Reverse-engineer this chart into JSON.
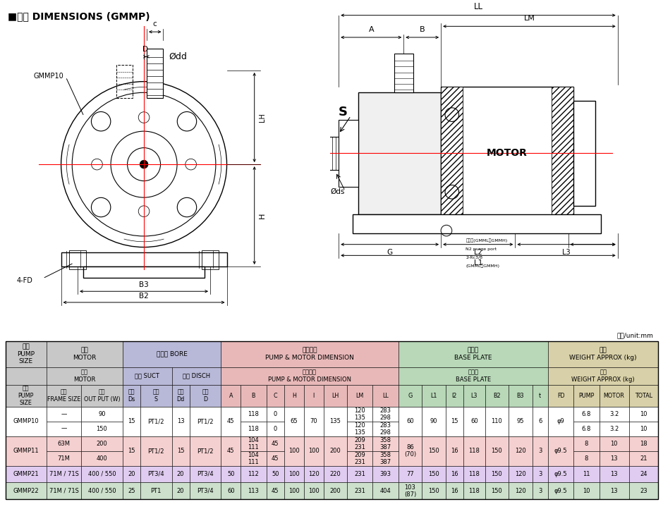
{
  "title_black": "■尺寸 DIMENSIONS (GMMP)",
  "unit_label": "單位/unit:mm",
  "bg_color": "#ffffff",
  "colors": {
    "main_header": "#c8c8c8",
    "bore_header": "#b8b8d8",
    "pump_motor_header": "#e8b8b8",
    "base_plate_header": "#b8d8b8",
    "weight_header": "#d8d0a8",
    "gmmp10_row": "#ffffff",
    "gmmp11_row": "#f5d0d0",
    "gmmp21_row": "#e0ccf0",
    "gmmp22_row": "#cce0cc"
  },
  "rows": [
    [
      "GMMP10",
      "—",
      "90",
      "15",
      "PT1/2",
      "13",
      "PT1/2",
      "45",
      "118",
      "0",
      "65",
      "70",
      "135",
      "120\n135",
      "283\n298",
      "60",
      "90",
      "15",
      "60",
      "110",
      "95",
      "6",
      "φ9",
      "6.8",
      "3.2",
      "10"
    ],
    [
      "GMMP10",
      "—",
      "150",
      "15",
      "PT1/2",
      "13",
      "PT1/2",
      "45",
      "118",
      "0",
      "65",
      "70",
      "135",
      "120\n135",
      "283\n298",
      "60",
      "90",
      "15",
      "60",
      "110",
      "95",
      "6",
      "φ9",
      "6.8",
      "3.2",
      "10"
    ],
    [
      "GMMP11",
      "63M",
      "200",
      "15",
      "PT1/2",
      "15",
      "PT1/2",
      "45",
      "104\n111",
      "45",
      "100",
      "100",
      "200",
      "209\n231",
      "358\n387",
      "86\n(70)",
      "150",
      "16",
      "118",
      "150",
      "120",
      "3",
      "φ9.5",
      "8",
      "10",
      "18"
    ],
    [
      "GMMP11",
      "71M",
      "400",
      "15",
      "PT1/2",
      "15",
      "PT1/2",
      "45",
      "104\n111",
      "45",
      "100",
      "100",
      "200",
      "209\n231",
      "358\n387",
      "86\n(70)",
      "150",
      "16",
      "118",
      "150",
      "120",
      "3",
      "φ9.5",
      "8",
      "13",
      "21"
    ],
    [
      "GMMP21",
      "71M / 71S",
      "400 / 550",
      "20",
      "PT3/4",
      "20",
      "PT3/4",
      "50",
      "112",
      "50",
      "100",
      "120",
      "220",
      "231",
      "393",
      "77",
      "150",
      "16",
      "118",
      "150",
      "120",
      "3",
      "φ9.5",
      "11",
      "13",
      "24"
    ],
    [
      "GMMP22",
      "71M / 71S",
      "400 / 550",
      "25",
      "PT1",
      "20",
      "PT3/4",
      "60",
      "113",
      "45",
      "100",
      "100",
      "200",
      "231",
      "404",
      "103\n(87)",
      "150",
      "16",
      "118",
      "150",
      "120",
      "3",
      "φ9.5",
      "10",
      "13",
      "23"
    ]
  ]
}
